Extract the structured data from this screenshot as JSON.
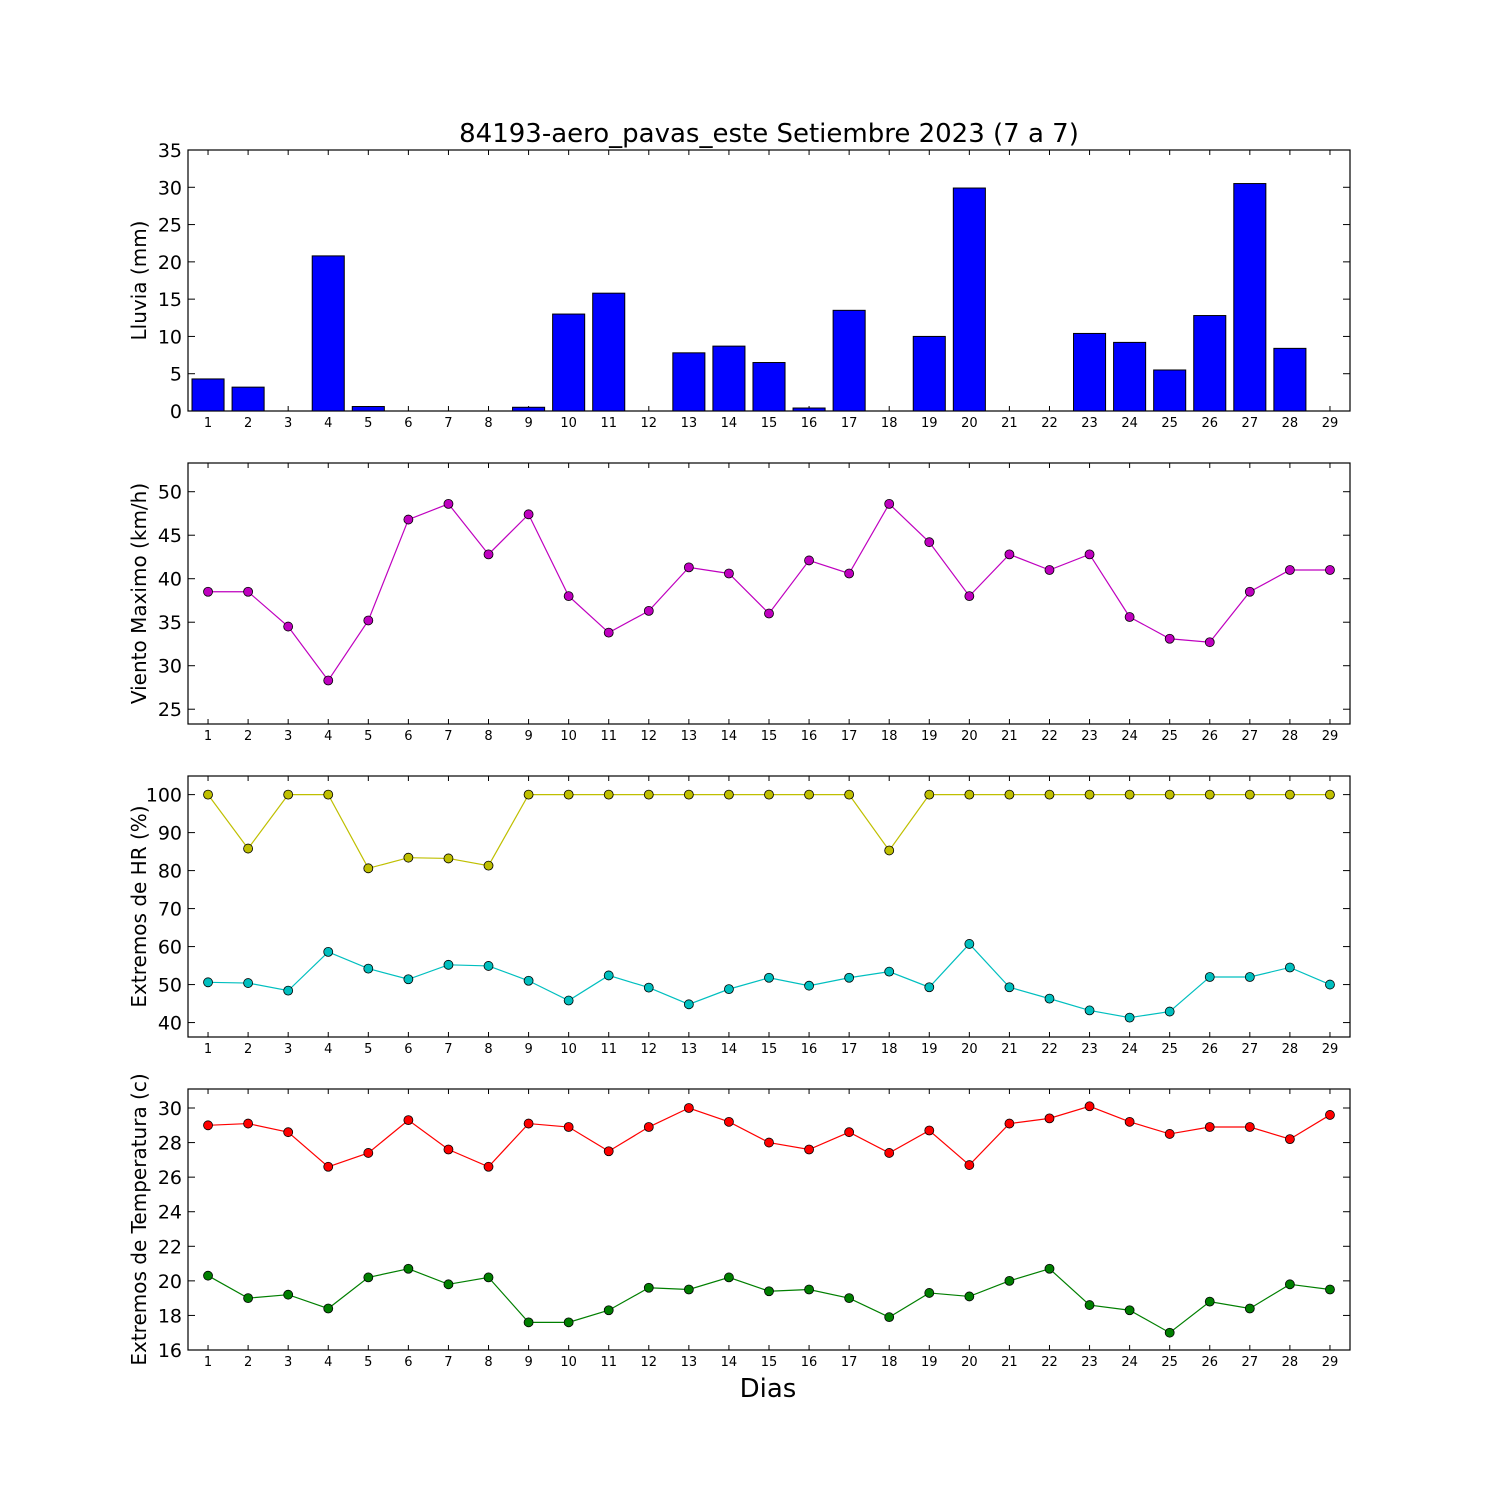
{
  "chart_data": {
    "title": "84193-aero_pavas_este Setiembre 2023  (7 a 7)",
    "xlabel": "Dias",
    "days": [
      1,
      2,
      3,
      4,
      5,
      6,
      7,
      8,
      9,
      10,
      11,
      12,
      13,
      14,
      15,
      16,
      17,
      18,
      19,
      20,
      21,
      22,
      23,
      24,
      25,
      26,
      27,
      28,
      29
    ],
    "panels": [
      {
        "type": "bar",
        "ylabel": "Lluvia (mm)",
        "ylim": [
          0,
          35
        ],
        "yticks": [
          0,
          5,
          10,
          15,
          20,
          25,
          30,
          35
        ],
        "series": [
          {
            "color": "#0000ff",
            "values": [
              4.3,
              3.2,
              0,
              20.8,
              0.6,
              0,
              0,
              0,
              0.5,
              13.0,
              15.8,
              0,
              7.8,
              8.7,
              6.5,
              0.4,
              13.5,
              0,
              10.0,
              29.9,
              0,
              0,
              10.4,
              9.2,
              5.5,
              12.8,
              30.5,
              8.4,
              0
            ]
          }
        ]
      },
      {
        "type": "line",
        "ylabel": "Viento Maximo (km/h)",
        "ylim": [
          23.3,
          53.3
        ],
        "yticks": [
          25,
          30,
          35,
          40,
          45,
          50
        ],
        "series": [
          {
            "color": "#bf00bf",
            "values": [
              38.5,
              38.5,
              34.5,
              28.3,
              35.2,
              46.8,
              48.6,
              42.8,
              47.4,
              38.0,
              33.8,
              36.3,
              41.3,
              40.6,
              36.0,
              42.1,
              40.6,
              48.6,
              44.2,
              38.0,
              42.8,
              41.0,
              42.8,
              35.6,
              33.1,
              32.7,
              38.5,
              41.0,
              41.0
            ]
          }
        ]
      },
      {
        "type": "line",
        "ylabel": "Extremos de HR (%)",
        "ylim": [
          36.2,
          104.9
        ],
        "yticks": [
          40,
          50,
          60,
          70,
          80,
          90,
          100
        ],
        "series": [
          {
            "color": "#bfbf00",
            "values": [
              100,
              85.8,
              100,
              100,
              80.6,
              83.4,
              83.2,
              81.3,
              100,
              100,
              100,
              100,
              100,
              100,
              100,
              100,
              100,
              85.3,
              100,
              100,
              100,
              100,
              100,
              100,
              100,
              100,
              100,
              100,
              100
            ]
          },
          {
            "color": "#00bfbf",
            "values": [
              50.6,
              50.4,
              48.4,
              58.6,
              54.2,
              51.4,
              55.2,
              54.9,
              51.0,
              45.8,
              52.4,
              49.2,
              44.8,
              48.8,
              51.8,
              49.7,
              51.8,
              53.4,
              49.3,
              60.7,
              49.3,
              46.3,
              43.2,
              41.3,
              42.9,
              52.0,
              52.0,
              54.5,
              50.0
            ]
          }
        ]
      },
      {
        "type": "line",
        "ylabel": "Extremos de Temperatura (c)",
        "ylim": [
          16,
          31.1
        ],
        "yticks": [
          16,
          18,
          20,
          22,
          24,
          26,
          28,
          30
        ],
        "series": [
          {
            "color": "#ff0000",
            "values": [
              29.0,
              29.1,
              28.6,
              26.6,
              27.4,
              29.3,
              27.6,
              26.6,
              29.1,
              28.9,
              27.5,
              28.9,
              30.0,
              29.2,
              28.0,
              27.6,
              28.6,
              27.4,
              28.7,
              26.7,
              29.1,
              29.4,
              30.1,
              29.2,
              28.5,
              28.9,
              28.9,
              28.2,
              29.6
            ]
          },
          {
            "color": "#007f00",
            "values": [
              20.3,
              19.0,
              19.2,
              18.4,
              20.2,
              20.7,
              19.8,
              20.2,
              17.6,
              17.6,
              18.3,
              19.6,
              19.5,
              20.2,
              19.4,
              19.5,
              19.0,
              17.9,
              19.3,
              19.1,
              20.0,
              20.7,
              18.6,
              18.3,
              17.0,
              18.8,
              18.4,
              19.8,
              19.5
            ]
          }
        ]
      }
    ]
  }
}
